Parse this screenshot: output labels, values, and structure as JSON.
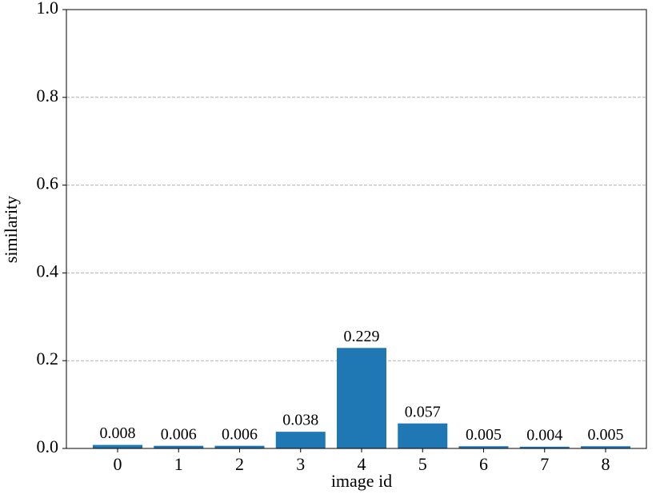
{
  "chart_data": {
    "type": "bar",
    "categories": [
      "0",
      "1",
      "2",
      "3",
      "4",
      "5",
      "6",
      "7",
      "8"
    ],
    "values": [
      0.008,
      0.006,
      0.006,
      0.038,
      0.229,
      0.057,
      0.005,
      0.004,
      0.005
    ],
    "color": "#1f77b4",
    "xlabel": "image id",
    "ylabel": "similarity",
    "ylim": [
      0,
      1
    ],
    "yticks": [
      {
        "value": 0,
        "label": "0.0"
      },
      0.2,
      0.4,
      0.6,
      0.8,
      {
        "value": 1,
        "label": "1.0"
      }
    ],
    "grid": true
  }
}
